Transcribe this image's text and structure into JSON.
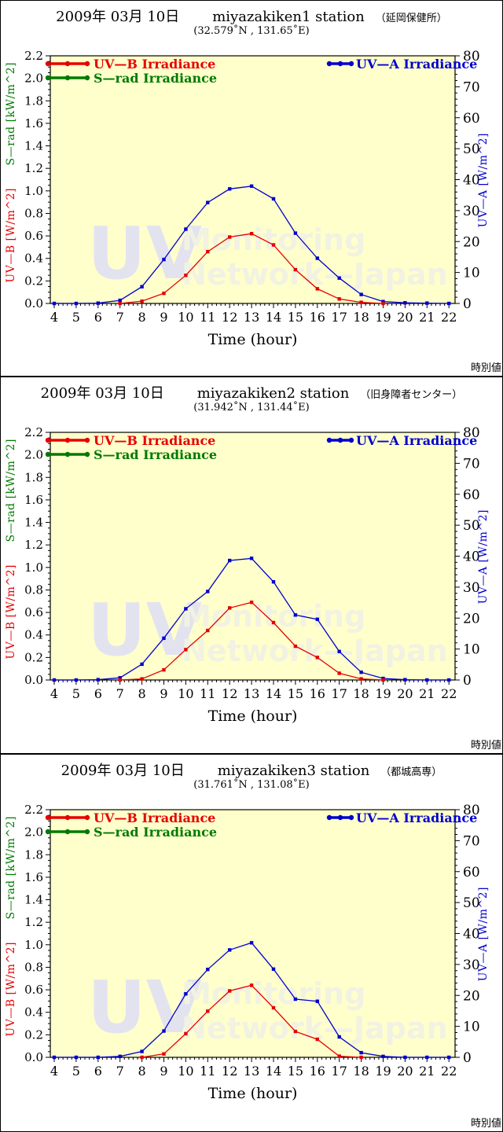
{
  "page": {
    "footer_label": "時別値"
  },
  "labels": {
    "left_axis_uvb": "UV—B [W/m^2]",
    "left_axis_srad": "S—rad [kW/m^2]",
    "right_axis_uva": "UV—A [W/m^2]"
  },
  "watermark": {
    "uv": "UV",
    "line1": "Monitoring",
    "line2": "Network—Japan"
  },
  "colors": {
    "uvb": "#e60000",
    "srad": "#007a00",
    "uva": "#0000cc",
    "plot_bg": "#ffffcc",
    "axis": "#000000",
    "watermark_uv": "#e3e3f0",
    "watermark_text": "#f2f2e2"
  },
  "chart_data": [
    {
      "type": "line",
      "title_date": "2009年 03月 10日",
      "title_station": "miyazakiken1 station",
      "title_facility": "（延岡保健所）",
      "coordinates": "(32.579˚N , 131.65˚E)",
      "xlabel": "Time (hour)",
      "x_range": [
        4,
        22
      ],
      "x": [
        4,
        5,
        6,
        7,
        8,
        9,
        10,
        11,
        12,
        13,
        14,
        15,
        16,
        17,
        18,
        19,
        20,
        21,
        22
      ],
      "left_ylim": [
        0,
        2.2
      ],
      "left_tick_step": 0.2,
      "right_ylim": [
        0,
        80
      ],
      "right_tick_step": 10,
      "series": [
        {
          "name": "UV—B Irradiance",
          "axis": "left",
          "color": "#e60000",
          "values": [
            null,
            null,
            null,
            0,
            0.02,
            0.09,
            0.25,
            0.46,
            0.59,
            0.62,
            0.52,
            0.3,
            0.13,
            0.04,
            0.01,
            0,
            null,
            null,
            null
          ]
        },
        {
          "name": "S—rad Irradiance",
          "axis": "left",
          "color": "#007a00",
          "values": [
            null,
            null,
            null,
            null,
            null,
            null,
            null,
            null,
            null,
            null,
            null,
            null,
            null,
            null,
            null,
            null,
            null,
            null,
            null
          ]
        },
        {
          "name": "UV—A Irradiance",
          "axis": "right",
          "color": "#0000cc",
          "values": [
            0,
            0,
            0.1,
            1.0,
            5.4,
            14.2,
            24.0,
            32.6,
            37.0,
            37.9,
            33.8,
            22.7,
            14.6,
            8.2,
            2.9,
            0.6,
            0.2,
            0.1,
            0
          ]
        }
      ]
    },
    {
      "type": "line",
      "title_date": "2009年 03月 10日",
      "title_station": "miyazakiken2 station",
      "title_facility": "（旧身障者センター）",
      "coordinates": "(31.942˚N , 131.44˚E)",
      "xlabel": "Time (hour)",
      "x_range": [
        4,
        22
      ],
      "x": [
        4,
        5,
        6,
        7,
        8,
        9,
        10,
        11,
        12,
        13,
        14,
        15,
        16,
        17,
        18,
        19,
        20,
        21,
        22
      ],
      "left_ylim": [
        0,
        2.2
      ],
      "left_tick_step": 0.2,
      "right_ylim": [
        0,
        80
      ],
      "right_tick_step": 10,
      "series": [
        {
          "name": "UV—B Irradiance",
          "axis": "left",
          "color": "#e60000",
          "values": [
            null,
            null,
            null,
            0,
            0.01,
            0.09,
            0.27,
            0.44,
            0.64,
            0.69,
            0.51,
            0.3,
            0.2,
            0.06,
            0.01,
            0,
            null,
            null,
            null
          ]
        },
        {
          "name": "S—rad Irradiance",
          "axis": "left",
          "color": "#007a00",
          "values": [
            null,
            null,
            null,
            null,
            null,
            null,
            null,
            null,
            null,
            null,
            null,
            null,
            null,
            null,
            null,
            null,
            null,
            null,
            null
          ]
        },
        {
          "name": "UV—A Irradiance",
          "axis": "right",
          "color": "#0000cc",
          "values": [
            0,
            0,
            0.1,
            0.7,
            5.1,
            13.5,
            23.0,
            28.6,
            38.6,
            39.3,
            31.7,
            21.0,
            19.6,
            9.2,
            2.5,
            0.5,
            0.1,
            0,
            0
          ]
        }
      ]
    },
    {
      "type": "line",
      "title_date": "2009年 03月 10日",
      "title_station": "miyazakiken3 station",
      "title_facility": "（都城高専）",
      "coordinates": "(31.761˚N , 131.08˚E)",
      "xlabel": "Time (hour)",
      "x_range": [
        4,
        22
      ],
      "x": [
        4,
        5,
        6,
        7,
        8,
        9,
        10,
        11,
        12,
        13,
        14,
        15,
        16,
        17,
        18,
        19,
        20,
        21,
        22
      ],
      "left_ylim": [
        0,
        2.2
      ],
      "left_tick_step": 0.2,
      "right_ylim": [
        0,
        80
      ],
      "right_tick_step": 10,
      "series": [
        {
          "name": "UV—B Irradiance",
          "axis": "left",
          "color": "#e60000",
          "values": [
            null,
            null,
            null,
            null,
            0,
            0.03,
            0.21,
            0.41,
            0.59,
            0.64,
            0.44,
            0.23,
            0.16,
            0.01,
            0,
            null,
            null,
            null,
            null
          ]
        },
        {
          "name": "S—rad Irradiance",
          "axis": "left",
          "color": "#007a00",
          "values": [
            null,
            null,
            null,
            null,
            null,
            null,
            null,
            null,
            null,
            null,
            null,
            null,
            null,
            null,
            null,
            null,
            null,
            null,
            null
          ]
        },
        {
          "name": "UV—A Irradiance",
          "axis": "right",
          "color": "#0000cc",
          "values": [
            0,
            0,
            0,
            0.3,
            1.9,
            8.5,
            20.5,
            28.4,
            34.7,
            37.0,
            28.5,
            18.8,
            18.1,
            6.6,
            1.5,
            0.3,
            0,
            0,
            0
          ]
        }
      ]
    }
  ]
}
